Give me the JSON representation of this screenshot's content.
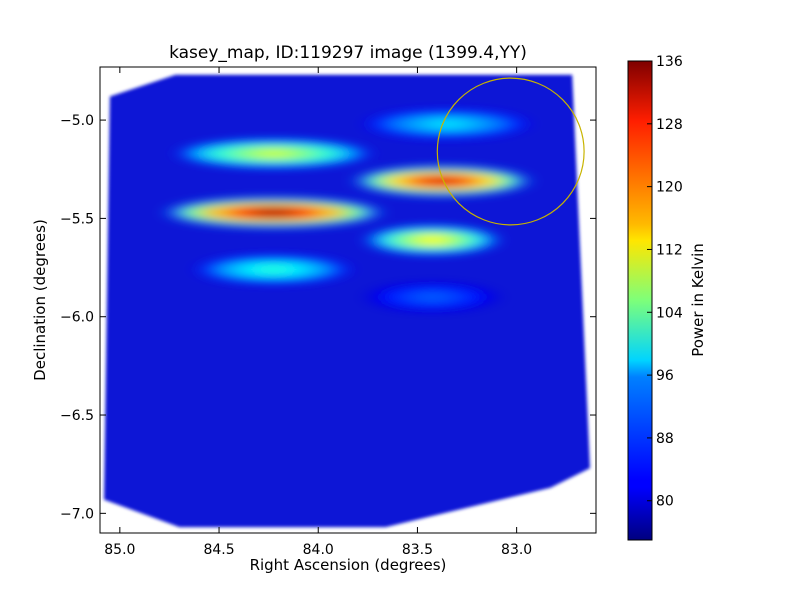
{
  "chart_data": {
    "type": "heatmap",
    "title": "kasey_map, ID:119297 image (1399.4,YY)",
    "xlabel": "Right Ascension (degrees)",
    "ylabel": "Declination (degrees)",
    "colorbar_label": "Power in Kelvin",
    "colormap": "jet",
    "xlim": [
      85.1,
      82.6
    ],
    "ylim": [
      -7.1,
      -4.73
    ],
    "x_ticks": [
      85.0,
      84.5,
      84.0,
      83.5,
      83.0
    ],
    "x_tick_labels": [
      "85.0",
      "84.5",
      "84.0",
      "83.5",
      "83.0"
    ],
    "y_ticks": [
      -5.0,
      -5.5,
      -6.0,
      -6.5,
      -7.0
    ],
    "y_tick_labels": [
      "−5.0",
      "−5.5",
      "−6.0",
      "−6.5",
      "−7.0"
    ],
    "colorbar_range": [
      75,
      136
    ],
    "colorbar_ticks": [
      80,
      88,
      96,
      104,
      112,
      120,
      128,
      136
    ],
    "colorbar_tick_labels": [
      "80",
      "88",
      "96",
      "104",
      "112",
      "120",
      "128",
      "136"
    ],
    "footprint_ra_dec": [
      [
        85.05,
        -4.88
      ],
      [
        84.72,
        -4.77
      ],
      [
        82.72,
        -4.77
      ],
      [
        82.63,
        -6.77
      ],
      [
        82.83,
        -6.87
      ],
      [
        83.66,
        -7.07
      ],
      [
        84.7,
        -7.07
      ],
      [
        85.08,
        -6.93
      ]
    ],
    "bright_bands": [
      {
        "ra_min": 84.7,
        "ra_max": 83.75,
        "dec": -5.17,
        "peak_kelvin": 110
      },
      {
        "ra_min": 84.75,
        "ra_max": 83.7,
        "dec": -5.47,
        "peak_kelvin": 133
      },
      {
        "ra_min": 84.6,
        "ra_max": 83.85,
        "dec": -5.76,
        "peak_kelvin": 100
      },
      {
        "ra_min": 83.75,
        "ra_max": 82.95,
        "dec": -5.02,
        "peak_kelvin": 96
      },
      {
        "ra_min": 83.8,
        "ra_max": 82.95,
        "dec": -5.31,
        "peak_kelvin": 130
      },
      {
        "ra_min": 83.75,
        "ra_max": 83.1,
        "dec": -5.61,
        "peak_kelvin": 113
      },
      {
        "ra_min": 83.75,
        "ra_max": 83.1,
        "dec": -5.9,
        "peak_kelvin": 88
      }
    ],
    "circle": {
      "ra": 83.03,
      "dec": -5.16,
      "radius_deg": 0.37,
      "color": "#c8b400"
    },
    "grid": false
  }
}
